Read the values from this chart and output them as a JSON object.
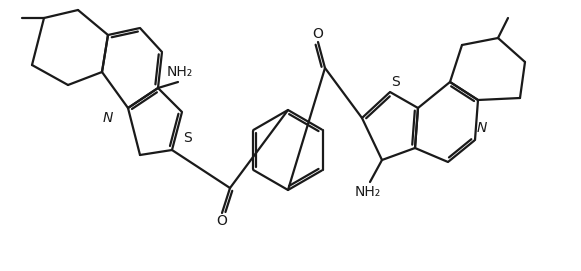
{
  "bg_color": "#ffffff",
  "line_color": "#1a1a1a",
  "lw": 1.6,
  "figsize": [
    5.81,
    2.71
  ],
  "dpi": 100,
  "atoms": {
    "N1": "N",
    "S1": "S",
    "NH2_1": "NH₂",
    "O1": "O",
    "N2": "N",
    "S2": "S",
    "NH2_2": "NH₂",
    "O2": "O"
  }
}
